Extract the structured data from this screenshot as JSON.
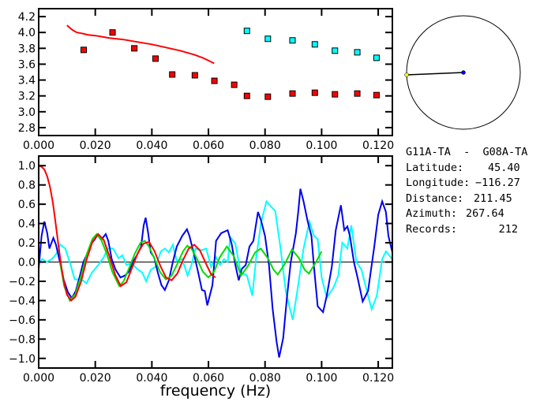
{
  "info_panel": {
    "pair": "G11A-TA  -  G08A-TA",
    "lines": [
      {
        "label": "Latitude:",
        "value": "45.40"
      },
      {
        "label": "Longitude:",
        "value": "-116.27"
      },
      {
        "label": "Distance:",
        "value": "211.45"
      },
      {
        "label": "Azimuth:",
        "value": "267.64"
      },
      {
        "label": "Records:",
        "value": "212"
      }
    ]
  },
  "azimuth_dial": {
    "azimuth_deg": 267.64,
    "colors": {
      "station": "#ffff00",
      "center": "#0000ff",
      "line": "#000000"
    }
  },
  "chart_data": [
    {
      "type": "scatter",
      "xlim": [
        0,
        0.125
      ],
      "ylim": [
        2.7,
        4.3
      ],
      "x_ticks": [
        "0.000",
        "0.020",
        "0.040",
        "0.060",
        "0.080",
        "0.100",
        "0.120"
      ],
      "y_ticks": [
        "2.8",
        "3.0",
        "3.2",
        "3.4",
        "3.6",
        "3.8",
        "4.0",
        "4.2"
      ],
      "grid": false,
      "series": [
        {
          "kind": "points",
          "color": "#ff0000",
          "x": [
            0.0159,
            0.0261,
            0.0338,
            0.0413,
            0.0472,
            0.0552,
            0.0621,
            0.0691,
            0.0736,
            0.081,
            0.0897,
            0.0976,
            0.1047,
            0.1126,
            0.1194
          ],
          "y": [
            3.78,
            4.0,
            3.8,
            3.67,
            3.47,
            3.46,
            3.39,
            3.34,
            3.2,
            3.19,
            3.23,
            3.24,
            3.22,
            3.23,
            3.21
          ]
        },
        {
          "kind": "points",
          "color": "#00ffff",
          "x": [
            0.0736,
            0.081,
            0.0897,
            0.0976,
            0.1047,
            0.1126,
            0.1194
          ],
          "y": [
            4.02,
            3.92,
            3.9,
            3.85,
            3.77,
            3.75,
            3.68
          ]
        },
        {
          "kind": "line",
          "color": "#ff0000",
          "x": [
            0.01,
            0.011,
            0.012,
            0.0135,
            0.015,
            0.0175,
            0.02,
            0.025,
            0.03,
            0.035,
            0.04,
            0.045,
            0.05,
            0.055,
            0.058,
            0.062
          ],
          "y": [
            4.09,
            4.06,
            4.03,
            4.0,
            3.99,
            3.97,
            3.96,
            3.93,
            3.91,
            3.88,
            3.85,
            3.81,
            3.77,
            3.72,
            3.68,
            3.61
          ]
        }
      ]
    },
    {
      "type": "line",
      "xlabel": "frequency (Hz)",
      "xlim": [
        0,
        0.125
      ],
      "ylim": [
        -1.1,
        1.1
      ],
      "x_ticks": [
        "0.000",
        "0.020",
        "0.040",
        "0.060",
        "0.080",
        "0.100",
        "0.120"
      ],
      "y_ticks": [
        "-1.0",
        "-0.8",
        "-0.6",
        "-0.4",
        "-0.2",
        "0.0",
        "0.2",
        "0.4",
        "0.6",
        "0.8",
        "1.0"
      ],
      "grid": false,
      "zero_line": true,
      "series": [
        {
          "color": "#00ffff",
          "x": [
            0,
            0.0014,
            0.0028,
            0.0047,
            0.0061,
            0.0077,
            0.0094,
            0.0113,
            0.0127,
            0.015,
            0.0169,
            0.0188,
            0.0211,
            0.023,
            0.0244,
            0.0263,
            0.0282,
            0.0296,
            0.031,
            0.0329,
            0.0347,
            0.0366,
            0.038,
            0.0396,
            0.0413,
            0.0432,
            0.0446,
            0.046,
            0.0474,
            0.0488,
            0.0507,
            0.0526,
            0.054,
            0.0554,
            0.0573,
            0.0592,
            0.0609,
            0.0627,
            0.0641,
            0.0655,
            0.0668,
            0.0677,
            0.0695,
            0.0714,
            0.0736,
            0.0755,
            0.0768,
            0.0786,
            0.0805,
            0.0823,
            0.0836,
            0.0855,
            0.0873,
            0.0886,
            0.0898,
            0.0914,
            0.0936,
            0.0957,
            0.0973,
            0.0986,
            0.1,
            0.1018,
            0.1041,
            0.1059,
            0.1073,
            0.1091,
            0.1105,
            0.1123,
            0.1141,
            0.1164,
            0.1177,
            0.1195,
            0.1214,
            0.1227,
            0.125
          ],
          "y": [
            0,
            0.03,
            0,
            0.03,
            0.08,
            0.18,
            0.14,
            -0.03,
            -0.18,
            -0.18,
            -0.22,
            -0.11,
            -0.03,
            0.05,
            0.14,
            0.14,
            0.04,
            0.07,
            -0.03,
            -0.01,
            -0.07,
            -0.11,
            -0.2,
            -0.08,
            -0.05,
            0.11,
            0.14,
            0.1,
            0.18,
            0.01,
            0.03,
            -0.14,
            -0.03,
            0.14,
            0.12,
            0.14,
            -0.05,
            0.05,
            -0.03,
            0.03,
            0,
            0.26,
            0.19,
            -0.11,
            -0.14,
            -0.35,
            0.03,
            0.41,
            0.63,
            0.57,
            0.53,
            0.14,
            -0.3,
            -0.46,
            -0.6,
            -0.3,
            0.14,
            0.42,
            0.27,
            0.24,
            -0.16,
            -0.37,
            -0.27,
            -0.14,
            0.2,
            0.14,
            0.38,
            0,
            -0.08,
            -0.35,
            -0.49,
            -0.35,
            0.03,
            0.11,
            0.03
          ]
        },
        {
          "color": "#0000ee",
          "x": [
            0,
            0.001,
            0.002,
            0.003,
            0.0038,
            0.0044,
            0.0052,
            0.0061,
            0.0075,
            0.0089,
            0.0103,
            0.0117,
            0.0131,
            0.0146,
            0.0158,
            0.0169,
            0.0183,
            0.0197,
            0.0208,
            0.0221,
            0.0237,
            0.0246,
            0.0258,
            0.0272,
            0.0289,
            0.0305,
            0.0319,
            0.0333,
            0.0347,
            0.0362,
            0.0371,
            0.0378,
            0.0387,
            0.0396,
            0.0408,
            0.0421,
            0.0434,
            0.0446,
            0.046,
            0.0474,
            0.0488,
            0.0507,
            0.0524,
            0.0533,
            0.0549,
            0.0563,
            0.0577,
            0.0587,
            0.0596,
            0.0614,
            0.0627,
            0.0645,
            0.0668,
            0.0682,
            0.0695,
            0.0707,
            0.0718,
            0.0732,
            0.0745,
            0.0759,
            0.0775,
            0.0786,
            0.08,
            0.0814,
            0.0827,
            0.0841,
            0.085,
            0.0864,
            0.0877,
            0.0891,
            0.0909,
            0.0918,
            0.0925,
            0.0936,
            0.095,
            0.0964,
            0.0973,
            0.0986,
            0.1005,
            0.1018,
            0.1036,
            0.105,
            0.1068,
            0.108,
            0.1091,
            0.11,
            0.1114,
            0.1127,
            0.1145,
            0.1164,
            0.1186,
            0.12,
            0.1214,
            0.1227,
            0.1236,
            0.125
          ],
          "y": [
            -0.07,
            0.27,
            0.42,
            0.3,
            0.14,
            0.19,
            0.25,
            0.18,
            0,
            -0.19,
            -0.31,
            -0.375,
            -0.3,
            -0.14,
            0,
            0.07,
            0.18,
            0.23,
            0.28,
            0.23,
            0.29,
            0.22,
            0.03,
            -0.08,
            -0.16,
            -0.14,
            -0.1,
            0,
            0.07,
            0.16,
            0.38,
            0.46,
            0.3,
            0.1,
            0.05,
            -0.11,
            -0.24,
            -0.29,
            -0.19,
            0,
            0.16,
            0.27,
            0.34,
            0.27,
            0.08,
            -0.1,
            -0.29,
            -0.3,
            -0.45,
            -0.24,
            0.22,
            0.3,
            0.33,
            0.19,
            -0.03,
            -0.19,
            -0.07,
            -0.03,
            0.16,
            0.22,
            0.52,
            0.43,
            0.27,
            -0.03,
            -0.49,
            -0.83,
            -0.99,
            -0.79,
            -0.38,
            0,
            0.3,
            0.54,
            0.76,
            0.63,
            0.43,
            0.27,
            -0.05,
            -0.46,
            -0.52,
            -0.35,
            -0.05,
            0.33,
            0.59,
            0.33,
            0.37,
            0.27,
            0,
            -0.16,
            -0.41,
            -0.3,
            0.16,
            0.49,
            0.63,
            0.52,
            0.27,
            0.1
          ]
        },
        {
          "color": "#00dd00",
          "x": [
            0.0075,
            0.009,
            0.011,
            0.013,
            0.015,
            0.017,
            0.019,
            0.0205,
            0.022,
            0.024,
            0.026,
            0.0285,
            0.03,
            0.032,
            0.034,
            0.036,
            0.0375,
            0.039,
            0.041,
            0.043,
            0.045,
            0.047,
            0.049,
            0.051,
            0.0525,
            0.054,
            0.056,
            0.058,
            0.06,
            0.062,
            0.064,
            0.0665,
            0.069,
            0.0715,
            0.074,
            0.0765,
            0.0785,
            0.081,
            0.083,
            0.0845,
            0.087,
            0.0895,
            0.092,
            0.094,
            0.0955,
            0.098,
            0.1
          ],
          "y": [
            0,
            -0.25,
            -0.4,
            -0.33,
            -0.14,
            0.08,
            0.24,
            0.29,
            0.24,
            0.09,
            -0.1,
            -0.25,
            -0.2,
            -0.06,
            0.09,
            0.2,
            0.22,
            0.16,
            0.03,
            -0.11,
            -0.18,
            -0.14,
            -0.02,
            0.11,
            0.17,
            0.14,
            0.03,
            -0.1,
            -0.16,
            -0.1,
            0.05,
            0.16,
            0.06,
            -0.14,
            -0.04,
            0.1,
            0.14,
            0.04,
            -0.08,
            -0.13,
            -0.02,
            0.13,
            0.04,
            -0.08,
            -0.12,
            0,
            0.11
          ]
        },
        {
          "color": "#ff0000",
          "x": [
            0,
            0.001,
            0.002,
            0.003,
            0.004,
            0.005,
            0.006,
            0.007,
            0.008,
            0.009,
            0.01,
            0.0115,
            0.013,
            0.015,
            0.017,
            0.019,
            0.021,
            0.023,
            0.025,
            0.027,
            0.029,
            0.031,
            0.033,
            0.035,
            0.037,
            0.039,
            0.041,
            0.043,
            0.045,
            0.047,
            0.049,
            0.051,
            0.053,
            0.055,
            0.057,
            0.059,
            0.061,
            0.0625
          ],
          "y": [
            1.0,
            0.99,
            0.96,
            0.89,
            0.78,
            0.62,
            0.4,
            0.17,
            -0.05,
            -0.22,
            -0.34,
            -0.4,
            -0.36,
            -0.2,
            0.03,
            0.21,
            0.29,
            0.23,
            0.06,
            -0.13,
            -0.25,
            -0.21,
            -0.06,
            0.09,
            0.19,
            0.21,
            0.11,
            -0.04,
            -0.16,
            -0.19,
            -0.12,
            0.02,
            0.14,
            0.18,
            0.12,
            -0.01,
            -0.13,
            -0.16
          ]
        }
      ]
    }
  ]
}
